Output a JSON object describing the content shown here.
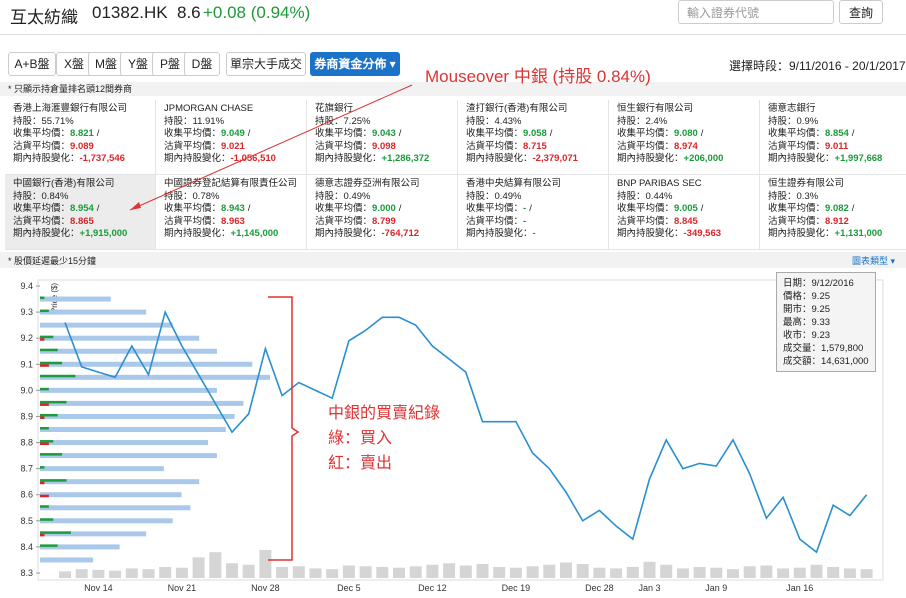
{
  "header": {
    "name": "互太紡織",
    "code": "01382.HK",
    "price": "8.6",
    "change": "+0.08 (0.94%)",
    "search_placeholder": "輸入證券代號",
    "search_button": "查詢"
  },
  "toolbar": {
    "tabs": [
      {
        "label": "A+B盤"
      },
      {
        "label": "X盤"
      },
      {
        "label": "M盤"
      },
      {
        "label": "Y盤"
      },
      {
        "label": "P盤"
      },
      {
        "label": "D盤"
      },
      {
        "label": "單宗大手成交"
      },
      {
        "label": "券商資金分佈 ▾",
        "active": true
      }
    ],
    "period": "選擇時段：9/11/2016 - 20/1/2017"
  },
  "notes": {
    "top12": "* 只顯示持倉量排名頭12間券商",
    "delay": "* 股價延遲最少15分鐘",
    "chart_type": "圖表類型 ▾"
  },
  "broker_labels": [
    "持股：",
    "收集平均價：",
    "沽貨平均價：",
    "期內持股變化："
  ],
  "separator": "/",
  "brokers": [
    {
      "name": "香港上海滙豐銀行有限公司",
      "holding": "55.71%",
      "buy": "8.821",
      "sell": "9.089",
      "change": "-1,737,546"
    },
    {
      "name": "JPMORGAN CHASE",
      "holding": "11.91%",
      "buy": "9.049",
      "sell": "9.021",
      "change": "-1,056,510"
    },
    {
      "name": "花旗銀行",
      "holding": "7.25%",
      "buy": "9.043",
      "sell": "9.098",
      "change": "+1,286,372"
    },
    {
      "name": "渣打銀行(香港)有限公司",
      "holding": "4.43%",
      "buy": "9.058",
      "sell": "8.715",
      "change": "-2,379,071"
    },
    {
      "name": "恒生銀行有限公司",
      "holding": "2.4%",
      "buy": "9.080",
      "sell": "8.974",
      "change": "+206,000"
    },
    {
      "name": "德意志銀行",
      "holding": "0.9%",
      "buy": "8.854",
      "sell": "9.011",
      "change": "+1,997,668"
    },
    {
      "name": "中國銀行(香港)有限公司",
      "holding": "0.84%",
      "buy": "8.954",
      "sell": "8.865",
      "change": "+1,915,000",
      "highlighted": true
    },
    {
      "name": "中國證券登記結算有限責任公司",
      "holding": "0.78%",
      "buy": "8.943",
      "sell": "8.963",
      "change": "+1,145,000"
    },
    {
      "name": "德意志證券亞洲有限公司",
      "holding": "0.49%",
      "buy": "9.000",
      "sell": "8.799",
      "change": "-764,712"
    },
    {
      "name": "香港中央結算有限公司",
      "holding": "0.49%",
      "buy": "-",
      "sell": "-",
      "change": "-"
    },
    {
      "name": "BNP PARIBAS SEC",
      "holding": "0.44%",
      "buy": "9.005",
      "sell": "8.845",
      "change": "-349,563"
    },
    {
      "name": "恒生證券有限公司",
      "holding": "0.3%",
      "buy": "9.082",
      "sell": "8.912",
      "change": "+1,131,000"
    }
  ],
  "annotations": {
    "mouseover": "Mouseover 中銀 (持股 0.84%)",
    "record": "中銀的買賣紀錄",
    "green": "綠：買入",
    "red": "紅：賣出"
  },
  "tooltip": [
    [
      "日期：",
      "9/12/2016"
    ],
    [
      "價格：",
      "9.25"
    ],
    [
      "開市：",
      "9.25"
    ],
    [
      "最高：",
      "9.33"
    ],
    [
      "收市：",
      "9.23"
    ],
    [
      "成交量：",
      "1,579,800"
    ],
    [
      "成交額：",
      "14,631,000"
    ]
  ],
  "chart_data": {
    "type": "line",
    "y_label": "Price ($)",
    "color": "#2a8fd0",
    "categories": [
      null,
      null,
      "Nov 14",
      null,
      null,
      null,
      null,
      "Nov 21",
      null,
      null,
      null,
      null,
      "Nov 28",
      null,
      null,
      null,
      null,
      "Dec 5",
      null,
      null,
      null,
      null,
      "Dec 12",
      null,
      null,
      null,
      null,
      "Dec 19",
      null,
      null,
      null,
      null,
      "Dec 28",
      null,
      null,
      "Jan 3",
      null,
      null,
      null,
      "Jan 9",
      null,
      null,
      null,
      null,
      "Jan 16",
      null,
      null,
      null,
      null
    ],
    "values": [
      9.26,
      9.09,
      9.07,
      9.05,
      9.17,
      9.06,
      9.3,
      9.17,
      9.06,
      8.95,
      8.84,
      8.91,
      9.16,
      8.98,
      9.03,
      9.0,
      8.97,
      9.19,
      9.23,
      9.28,
      9.28,
      9.25,
      9.17,
      9.12,
      9.07,
      8.88,
      8.88,
      8.88,
      8.76,
      8.7,
      8.61,
      8.5,
      8.54,
      8.48,
      8.43,
      8.66,
      8.81,
      8.7,
      8.72,
      8.71,
      8.81,
      8.68,
      8.51,
      8.59,
      8.43,
      8.38,
      8.56,
      8.52,
      8.6
    ],
    "volume": [
      900000,
      1200000,
      1100000,
      1000000,
      1300000,
      1200000,
      1500000,
      1400000,
      2800000,
      3500000,
      2000000,
      1800000,
      3800000,
      1500000,
      1600000,
      1300000,
      1200000,
      1700000,
      1600000,
      1500000,
      1400000,
      1579800,
      1800000,
      2000000,
      1700000,
      1900000,
      1500000,
      1400000,
      1600000,
      1800000,
      2100000,
      1900000,
      1400000,
      1300000,
      1500000,
      2200000,
      1800000,
      1300000,
      1500000,
      1400000,
      1200000,
      1600000,
      1700000,
      1300000,
      1400000,
      1800000,
      1500000,
      1300000,
      1200000
    ],
    "volume_color": "#d5d5d5",
    "profile": {
      "prices": [
        8.35,
        8.4,
        8.45,
        8.5,
        8.55,
        8.6,
        8.65,
        8.7,
        8.75,
        8.8,
        8.85,
        8.9,
        8.95,
        9.0,
        9.05,
        9.1,
        9.15,
        9.2,
        9.25,
        9.3,
        9.35
      ],
      "total": [
        60,
        90,
        120,
        150,
        170,
        160,
        180,
        140,
        200,
        190,
        210,
        220,
        230,
        200,
        260,
        240,
        200,
        180,
        150,
        120,
        80
      ],
      "buy": [
        0,
        20,
        35,
        15,
        10,
        0,
        30,
        5,
        25,
        15,
        10,
        20,
        30,
        10,
        40,
        25,
        20,
        15,
        0,
        10,
        5
      ],
      "sell": [
        0,
        0,
        5,
        0,
        0,
        10,
        5,
        0,
        0,
        10,
        0,
        5,
        10,
        0,
        0,
        10,
        0,
        5,
        0,
        0,
        0
      ],
      "total_color": "#a9c8ea",
      "buy_color": "#1e9b3c",
      "sell_color": "#d9262b"
    },
    "ylim": [
      8.3,
      9.4
    ],
    "yticks": [
      8.3,
      8.4,
      8.5,
      8.6,
      8.7,
      8.8,
      8.9,
      {
        "value": 9,
        "label": "9.0"
      },
      9.1,
      9.2,
      9.3,
      9.4
    ]
  }
}
